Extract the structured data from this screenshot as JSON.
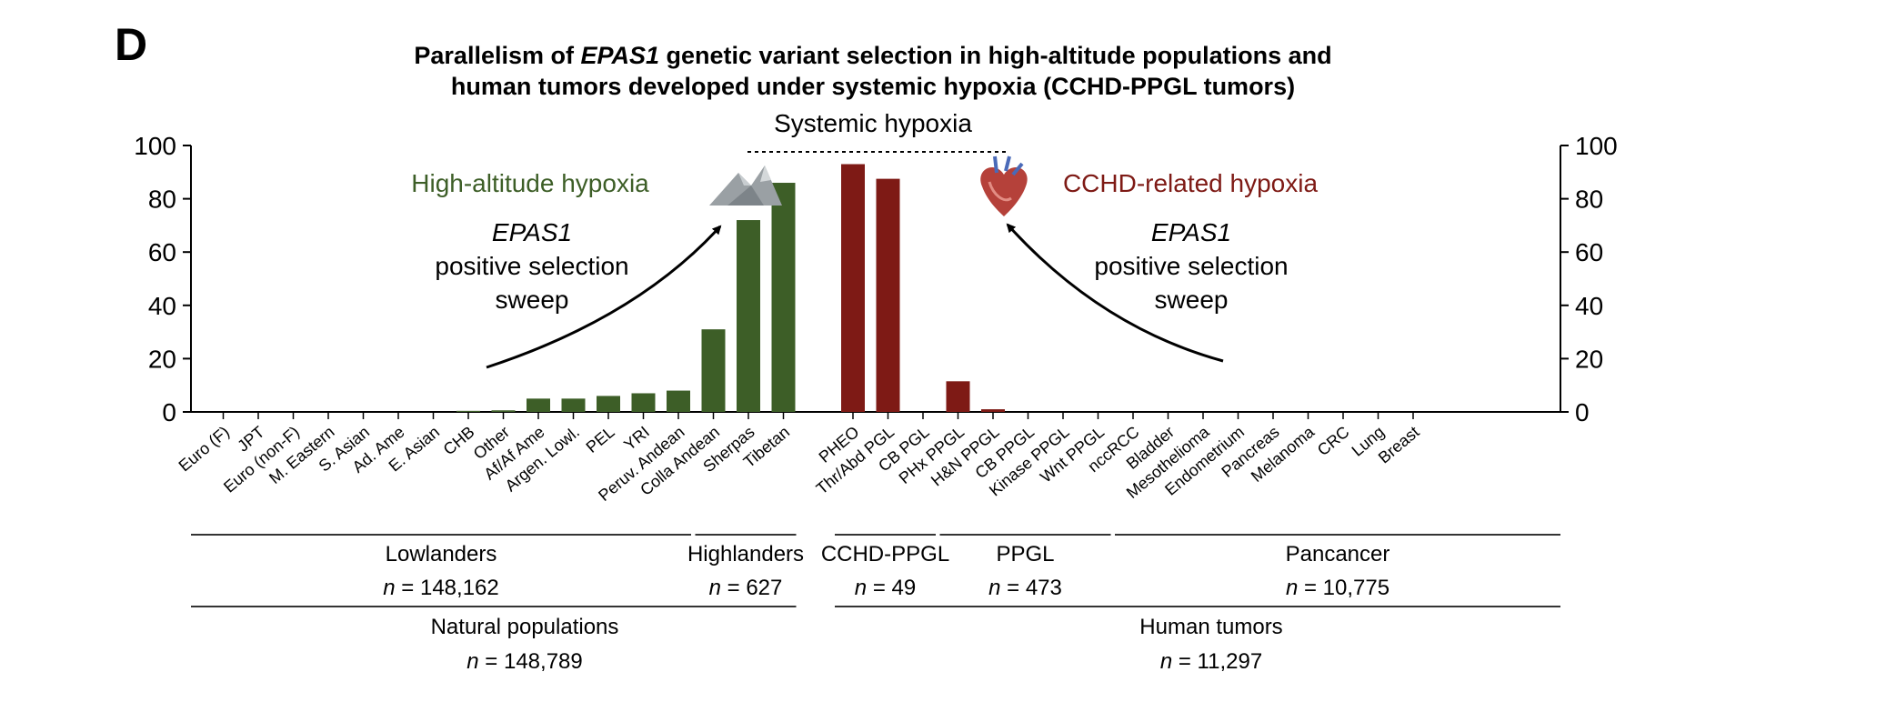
{
  "panel_letter": "D",
  "title": {
    "part1": "Parallelism of ",
    "gene": "EPAS1",
    "part2": " genetic variant selection in high-altitude populations and",
    "line2": "human tumors developed under systemic hypoxia (CCHD-PPGL tumors)"
  },
  "systemic_label": "Systemic hypoxia",
  "annotations": {
    "left_label": "High-altitude hypoxia",
    "right_label": "CCHD-related hypoxia",
    "left_sweep": [
      "EPAS1",
      "positive selection",
      "sweep"
    ],
    "right_sweep": [
      "EPAS1",
      "positive selection",
      "sweep"
    ],
    "left_icon": "mountain-icon",
    "right_icon": "heart-icon"
  },
  "colors": {
    "population": "#3d5e27",
    "tumor": "#7e1a15",
    "axis": "#000000"
  },
  "chart_data": {
    "type": "bar",
    "categories": [
      "Euro (F)",
      "JPT",
      "Euro (non-F)",
      "M. Eastern",
      "S. Asian",
      "Ad. Ame",
      "E. Asian",
      "CHB",
      "Other",
      "Af/Af Ame",
      "Argen. Lowl.",
      "PEL",
      "YRI",
      "Peruv. Andean",
      "Colla Andean",
      "Sherpas",
      "Tibetan",
      "PHEO",
      "Thr/Abd PGL",
      "CB PGL",
      "PHx PPGL",
      "H&N PPGL",
      "CB PPGL",
      "Kinase PPGL",
      "Wnt PPGL",
      "nccRCC",
      "Bladder",
      "Mesothelioma",
      "Endometrium",
      "Pancreas",
      "Melanoma",
      "CRC",
      "Lung",
      "Breast"
    ],
    "values": [
      0,
      0,
      0,
      0,
      0,
      0,
      0,
      0.4,
      0.6,
      5,
      5,
      6,
      7,
      8,
      31,
      72,
      86,
      93,
      87.5,
      0,
      11.5,
      1,
      0,
      0,
      0,
      0,
      0,
      0,
      0,
      0,
      0,
      0,
      0,
      0
    ],
    "group_kind": [
      "population",
      "population",
      "population",
      "population",
      "population",
      "population",
      "population",
      "population",
      "population",
      "population",
      "population",
      "population",
      "population",
      "population",
      "population",
      "population",
      "population",
      "tumor",
      "tumor",
      "tumor",
      "tumor",
      "tumor",
      "tumor",
      "tumor",
      "tumor",
      "tumor",
      "tumor",
      "tumor",
      "tumor",
      "tumor",
      "tumor",
      "tumor",
      "tumor",
      "tumor"
    ],
    "ylim": [
      0,
      100
    ],
    "yticks": [
      0,
      20,
      40,
      60,
      80,
      100
    ],
    "groups": [
      {
        "name": "Lowlanders",
        "n": "148,162",
        "first": 0,
        "last": 13
      },
      {
        "name": "Highlanders",
        "n": "627",
        "first": 14,
        "last": 16
      },
      {
        "name": "CCHD-PPGL",
        "n": "49",
        "first": 17,
        "last": 19
      },
      {
        "name": "PPGL",
        "n": "473",
        "first": 20,
        "last": 24
      },
      {
        "name": "Pancancer",
        "n": "10,775",
        "first": 25,
        "last": 33
      }
    ],
    "supergroups": [
      {
        "name": "Natural populations",
        "n": "148,789",
        "first": 0,
        "last": 16
      },
      {
        "name": "Human tumors",
        "n": "11,297",
        "first": 17,
        "last": 33
      }
    ],
    "n_prefix": "n",
    "n_equals": " = "
  }
}
